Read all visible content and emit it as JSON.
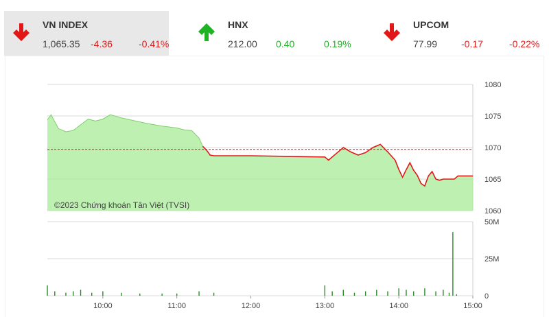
{
  "tickers": [
    {
      "name": "VN INDEX",
      "value": "1,065.35",
      "change": "-4.36",
      "pct": "-0.41%",
      "direction": "down"
    },
    {
      "name": "HNX",
      "value": "212.00",
      "change": "0.40",
      "pct": "0.19%",
      "direction": "up"
    },
    {
      "name": "UPCOM",
      "value": "77.99",
      "change": "-0.17",
      "pct": "-0.22%",
      "direction": "down"
    }
  ],
  "colors": {
    "up": "#1fb324",
    "down": "#e01818",
    "area": "#90e080",
    "volume": "#2a8a2a"
  },
  "credit": "©2023 Chứng khoán Tân Việt (TVSI)",
  "chart_data": {
    "type": "line",
    "reference": 1069.7,
    "price": {
      "ylim": [
        1060,
        1080
      ],
      "yticks": [
        "1080",
        "1075",
        "1070",
        "1065",
        "1060"
      ],
      "series": [
        [
          9.25,
          1074.4
        ],
        [
          9.3,
          1075.2
        ],
        [
          9.35,
          1074.1
        ],
        [
          9.4,
          1073.0
        ],
        [
          9.5,
          1072.5
        ],
        [
          9.6,
          1072.7
        ],
        [
          9.7,
          1073.6
        ],
        [
          9.8,
          1074.5
        ],
        [
          9.9,
          1074.2
        ],
        [
          10.0,
          1074.5
        ],
        [
          10.1,
          1075.2
        ],
        [
          10.25,
          1074.7
        ],
        [
          10.4,
          1074.3
        ],
        [
          10.6,
          1073.8
        ],
        [
          10.8,
          1073.4
        ],
        [
          11.0,
          1073.1
        ],
        [
          11.1,
          1072.8
        ],
        [
          11.2,
          1072.7
        ],
        [
          11.3,
          1071.5
        ],
        [
          11.35,
          1070.2
        ],
        [
          11.4,
          1069.6
        ],
        [
          11.45,
          1068.8
        ],
        [
          11.5,
          1068.7
        ],
        [
          12.0,
          1068.7
        ],
        [
          12.5,
          1068.6
        ],
        [
          13.0,
          1068.5
        ],
        [
          13.05,
          1068.0
        ],
        [
          13.15,
          1069.0
        ],
        [
          13.25,
          1070.0
        ],
        [
          13.35,
          1069.3
        ],
        [
          13.45,
          1068.8
        ],
        [
          13.55,
          1069.2
        ],
        [
          13.65,
          1070.0
        ],
        [
          13.75,
          1070.5
        ],
        [
          13.85,
          1069.3
        ],
        [
          13.95,
          1068.0
        ],
        [
          14.0,
          1066.5
        ],
        [
          14.05,
          1065.3
        ],
        [
          14.1,
          1066.5
        ],
        [
          14.15,
          1067.6
        ],
        [
          14.2,
          1066.4
        ],
        [
          14.25,
          1065.6
        ],
        [
          14.3,
          1064.3
        ],
        [
          14.35,
          1063.9
        ],
        [
          14.4,
          1065.5
        ],
        [
          14.45,
          1066.2
        ],
        [
          14.5,
          1065.0
        ],
        [
          14.55,
          1064.8
        ],
        [
          14.6,
          1065.0
        ],
        [
          14.75,
          1065.0
        ],
        [
          14.8,
          1065.5
        ],
        [
          15.0,
          1065.5
        ]
      ]
    },
    "volume": {
      "ylim": [
        0,
        50
      ],
      "yticks": [
        "50M",
        "25M",
        "0"
      ],
      "series": [
        [
          9.25,
          7
        ],
        [
          9.35,
          3
        ],
        [
          9.5,
          2
        ],
        [
          9.6,
          3
        ],
        [
          9.7,
          4
        ],
        [
          9.85,
          2
        ],
        [
          10.0,
          3
        ],
        [
          10.25,
          2
        ],
        [
          10.5,
          1.5
        ],
        [
          10.8,
          1.5
        ],
        [
          11.0,
          1.5
        ],
        [
          11.3,
          3
        ],
        [
          11.5,
          2
        ],
        [
          13.0,
          7
        ],
        [
          13.1,
          3
        ],
        [
          13.25,
          4
        ],
        [
          13.4,
          2
        ],
        [
          13.55,
          3
        ],
        [
          13.7,
          4
        ],
        [
          13.85,
          3
        ],
        [
          14.0,
          5
        ],
        [
          14.1,
          4
        ],
        [
          14.2,
          3
        ],
        [
          14.35,
          5
        ],
        [
          14.5,
          3
        ],
        [
          14.6,
          4
        ],
        [
          14.68,
          2
        ],
        [
          14.73,
          43
        ],
        [
          14.78,
          1
        ]
      ]
    },
    "xlim": [
      9.25,
      15.0
    ],
    "xticks": [
      "10:00",
      "11:00",
      "12:00",
      "13:00",
      "14:00",
      "15:00"
    ]
  }
}
